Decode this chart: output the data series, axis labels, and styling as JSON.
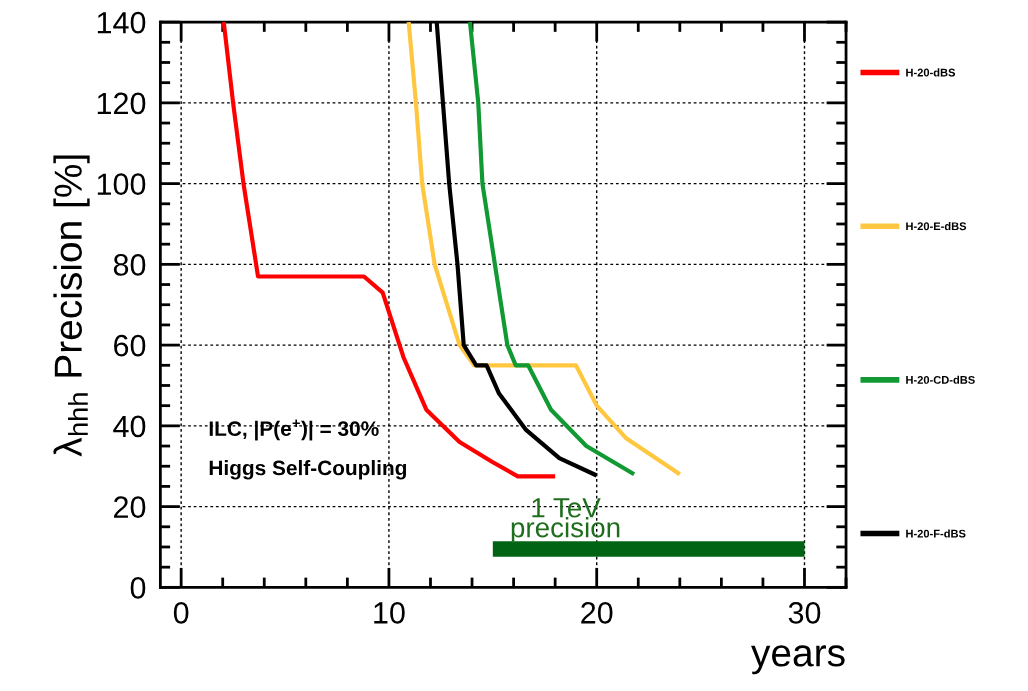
{
  "chart_data": {
    "type": "line",
    "xlabel": "years",
    "ylabel": "λ$_{hhh}$ Precision [%]",
    "xlim": [
      -1,
      32
    ],
    "xticks": [
      0,
      10,
      20,
      30
    ],
    "ylim": [
      0,
      140
    ],
    "yticks": [
      0,
      20,
      40,
      60,
      80,
      100,
      120,
      140
    ],
    "grid": true,
    "legend": "right",
    "marker": "none",
    "line_style": "solid",
    "series": [
      {
        "name": "H-20-dBS",
        "color": "#ff0000",
        "x": [
          2.05,
          2.5,
          3.0,
          3.7,
          8.8,
          9.7,
          10.7,
          11.8,
          13.4,
          15.0,
          16.2,
          18.0
        ],
        "values": [
          140,
          120,
          100,
          77,
          77,
          73,
          57,
          44,
          36,
          31,
          27.5,
          27.5
        ]
      },
      {
        "name": "H-20-E-dBS",
        "color": "#ffc740",
        "x": [
          10.95,
          11.3,
          11.6,
          12.2,
          13.4,
          14.1,
          19.0,
          20.0,
          21.4,
          24.0
        ],
        "values": [
          140,
          120,
          100,
          80,
          60,
          55,
          55,
          45,
          37,
          28
        ]
      },
      {
        "name": "H-20-CD-dBS",
        "color": "#119933",
        "x": [
          13.9,
          14.3,
          14.5,
          15.1,
          15.7,
          16.1,
          16.7,
          17.8,
          19.5,
          21.8
        ],
        "values": [
          140,
          120,
          100,
          80,
          60,
          55,
          55,
          44,
          35,
          28
        ]
      },
      {
        "name": "H-20-F-dBS",
        "color": "#000000",
        "x": [
          12.3,
          12.6,
          12.9,
          13.3,
          13.6,
          14.2,
          14.7,
          15.3,
          16.6,
          18.2,
          20.0
        ],
        "values": [
          140,
          120,
          100,
          80,
          60,
          55,
          55,
          48,
          39,
          32,
          27.7
        ]
      },
      {
        "color": "#006414",
        "x": [
          15,
          30
        ],
        "values": [
          9.5,
          9.5
        ]
      }
    ],
    "annotations": [
      "ILC, |P(e$^{+}$)| = 30%",
      "Higgs Self-Coupling",
      {
        "text": "1 TeV\nprecision",
        "x": 15,
        "y": 9.5
      }
    ]
  }
}
